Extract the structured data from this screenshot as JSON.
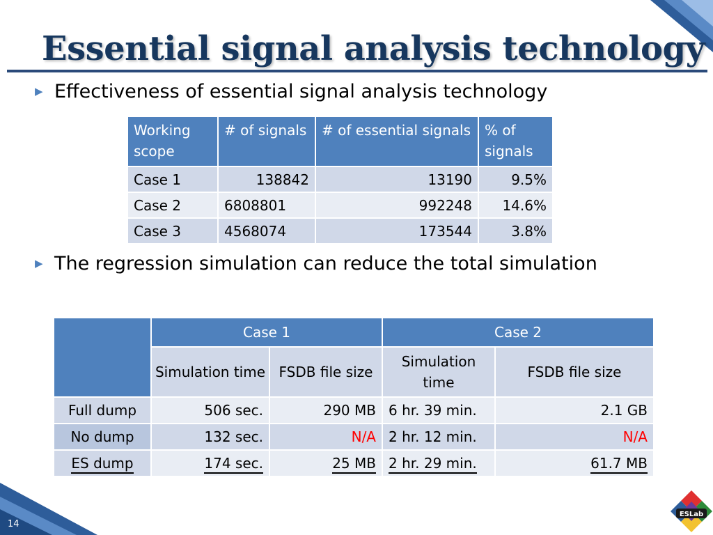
{
  "slide": {
    "title": "Essential signal analysis technology",
    "page_number": "14",
    "logo_text": "ESLab"
  },
  "bullets": [
    "Effectiveness of essential signal analysis technology",
    "The regression simulation can reduce the total simulation"
  ],
  "table1": {
    "headers": [
      "Working scope",
      "# of signals",
      "# of essential signals",
      "% of signals"
    ],
    "rows": [
      [
        "Case 1",
        "138842",
        "13190",
        "9.5%"
      ],
      [
        "Case 2",
        "6808801",
        "992248",
        "14.6%"
      ],
      [
        "Case 3",
        "4568074",
        "173544",
        "3.8%"
      ]
    ]
  },
  "table2": {
    "group_headers": [
      "Case 1",
      "Case 2"
    ],
    "sub_headers": [
      "Simulation time",
      "FSDB file size",
      "Simulation time",
      "FSDB file size"
    ],
    "rows": [
      [
        "Full dump",
        "506 sec.",
        "290 MB",
        "6 hr. 39 min.",
        "2.1 GB"
      ],
      [
        "No dump",
        "132 sec.",
        "N/A",
        "2 hr. 12 min.",
        "N/A"
      ],
      [
        "ES dump",
        "174 sec.",
        "25 MB",
        "2 hr. 29 min.",
        "61.7 MB"
      ]
    ]
  },
  "colors": {
    "header_blue": "#4f81bd",
    "row_light": "#d0d8e8",
    "row_lighter": "#e9edf4",
    "title_navy": "#17375e",
    "na_red": "#ff0000"
  }
}
